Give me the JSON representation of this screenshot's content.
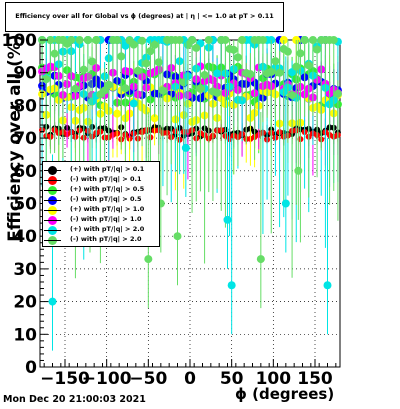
{
  "chart_data": {
    "type": "scatter",
    "title": "Efficiency over all for Global vs ϕ (degrees) at |  η | <= 1.0 at pT > 0.11",
    "xlabel": "ϕ (degrees)",
    "ylabel": "Efficiency over all (%)",
    "xlim": [
      -180,
      180
    ],
    "ylim": [
      0,
      100
    ],
    "xticks": [
      -150,
      -100,
      -50,
      0,
      50,
      100,
      150
    ],
    "xtick_labels": [
      "−150",
      "−100",
      "−50",
      "0",
      "50",
      "100",
      "150"
    ],
    "yticks": [
      0,
      10,
      20,
      30,
      40,
      50,
      60,
      70,
      80,
      90,
      100
    ],
    "grid": true,
    "legend_position": "left-middle",
    "series": [
      {
        "name": "(+) with pT/|q| > 0.1",
        "color": "#000000",
        "base": 72,
        "spread": 1.5,
        "errlo": 3,
        "errhi": 3
      },
      {
        "name": "(-) with pT/|q| > 0.1",
        "color": "#ff0000",
        "base": 71,
        "spread": 1.5,
        "errlo": 3,
        "errhi": 3
      },
      {
        "name": "(+) with pT/|q| > 0.5",
        "color": "#33ee33",
        "base": 86,
        "spread": 6,
        "errlo": 14,
        "errhi": 8
      },
      {
        "name": "(-) with pT/|q| > 0.5",
        "color": "#0000ff",
        "base": 86,
        "spread": 4,
        "errlo": 12,
        "errhi": 7
      },
      {
        "name": "(+) with pT/|q| > 1.0",
        "color": "#ffff00",
        "base": 80,
        "spread": 6,
        "errlo": 18,
        "errhi": 10
      },
      {
        "name": "(-) with pT/|q| > 1.0",
        "color": "#ff00ff",
        "base": 87,
        "spread": 5,
        "errlo": 20,
        "errhi": 8
      },
      {
        "name": "(+) with pT/|q| > 2.0",
        "color": "#00e5e5",
        "base": 90,
        "spread": 10,
        "errlo": 40,
        "errhi": 10
      },
      {
        "name": "(-) with pT/|q| > 2.0",
        "color": "#66dd66",
        "base": 92,
        "spread": 10,
        "errlo": 45,
        "errhi": 8
      }
    ],
    "outliers": [
      {
        "x": -165,
        "y": 20,
        "color": "#00e5e5"
      },
      {
        "x": -50,
        "y": 33,
        "color": "#66dd66"
      },
      {
        "x": -15,
        "y": 40,
        "color": "#66dd66"
      },
      {
        "x": 50,
        "y": 25,
        "color": "#00e5e5"
      },
      {
        "x": 85,
        "y": 33,
        "color": "#66dd66"
      },
      {
        "x": 165,
        "y": 25,
        "color": "#00e5e5"
      },
      {
        "x": -120,
        "y": 50,
        "color": "#66dd66"
      },
      {
        "x": -35,
        "y": 50,
        "color": "#66dd66"
      },
      {
        "x": 115,
        "y": 50,
        "color": "#00e5e5"
      },
      {
        "x": 45,
        "y": 45,
        "color": "#00e5e5"
      },
      {
        "x": -5,
        "y": 67,
        "color": "#00e5e5"
      },
      {
        "x": 130,
        "y": 60,
        "color": "#66dd66"
      }
    ]
  },
  "footer": {
    "timestamp": "Mon Dec 20 21:00:03 2021"
  }
}
